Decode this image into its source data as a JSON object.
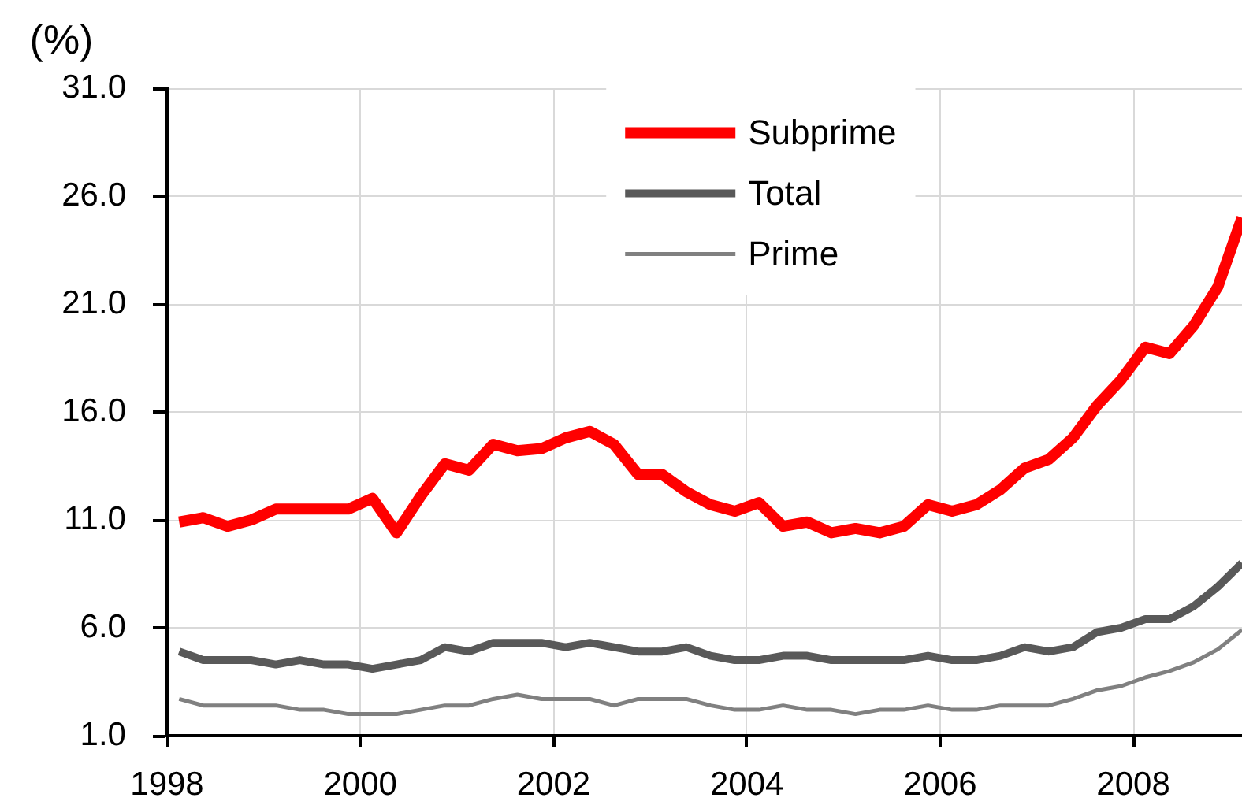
{
  "chart_data": {
    "type": "line",
    "ylabel": "(%)",
    "x": [
      1998.125,
      1998.375,
      1998.625,
      1998.875,
      1999.125,
      1999.375,
      1999.625,
      1999.875,
      2000.125,
      2000.375,
      2000.625,
      2000.875,
      2001.125,
      2001.375,
      2001.625,
      2001.875,
      2002.125,
      2002.375,
      2002.625,
      2002.875,
      2003.125,
      2003.375,
      2003.625,
      2003.875,
      2004.125,
      2004.375,
      2004.625,
      2004.875,
      2005.125,
      2005.375,
      2005.625,
      2005.875,
      2006.125,
      2006.375,
      2006.625,
      2006.875,
      2007.125,
      2007.375,
      2007.625,
      2007.875,
      2008.125,
      2008.375,
      2008.625,
      2008.875,
      2009.125
    ],
    "series": [
      {
        "name": "Subprime",
        "color": "#ff0000",
        "values": [
          10.9,
          11.1,
          10.7,
          11.0,
          11.5,
          11.5,
          11.5,
          11.5,
          12.0,
          10.4,
          12.1,
          13.6,
          13.3,
          14.5,
          14.2,
          14.3,
          14.8,
          15.1,
          14.5,
          13.1,
          13.1,
          12.3,
          11.7,
          11.4,
          11.8,
          10.7,
          10.9,
          10.4,
          10.6,
          10.4,
          10.7,
          11.7,
          11.4,
          11.7,
          12.4,
          13.4,
          13.8,
          14.8,
          16.3,
          17.5,
          19.0,
          18.7,
          20.0,
          21.8,
          25.0
        ]
      },
      {
        "name": "Total",
        "color": "#595959",
        "values": [
          4.9,
          4.5,
          4.5,
          4.5,
          4.3,
          4.5,
          4.3,
          4.3,
          4.1,
          4.3,
          4.5,
          5.1,
          4.9,
          5.3,
          5.3,
          5.3,
          5.1,
          5.3,
          5.1,
          4.9,
          4.9,
          5.1,
          4.7,
          4.5,
          4.5,
          4.7,
          4.7,
          4.5,
          4.5,
          4.5,
          4.5,
          4.7,
          4.5,
          4.5,
          4.7,
          5.1,
          4.9,
          5.1,
          5.8,
          6.0,
          6.4,
          6.4,
          7.0,
          7.9,
          9.0
        ]
      },
      {
        "name": "Prime",
        "color": "#808080",
        "values": [
          2.7,
          2.4,
          2.4,
          2.4,
          2.4,
          2.2,
          2.2,
          2.0,
          2.0,
          2.0,
          2.2,
          2.4,
          2.4,
          2.7,
          2.9,
          2.7,
          2.7,
          2.7,
          2.4,
          2.7,
          2.7,
          2.7,
          2.4,
          2.2,
          2.2,
          2.4,
          2.2,
          2.2,
          2.0,
          2.2,
          2.2,
          2.4,
          2.2,
          2.2,
          2.4,
          2.4,
          2.4,
          2.7,
          3.1,
          3.3,
          3.7,
          4.0,
          4.4,
          5.0,
          5.9
        ]
      }
    ],
    "xlim": [
      1998,
      2009.125
    ],
    "xticks": [
      1998,
      2000,
      2002,
      2004,
      2006,
      2008
    ],
    "ylim": [
      1,
      31
    ],
    "yticks": [
      {
        "value": 1,
        "label": "1.0"
      },
      {
        "value": 6,
        "label": "6.0"
      },
      {
        "value": 11,
        "label": "11.0"
      },
      {
        "value": 16,
        "label": "16.0"
      },
      {
        "value": 21,
        "label": "21.0"
      },
      {
        "value": 26,
        "label": "26.0"
      },
      {
        "value": 31,
        "label": "31.0"
      }
    ],
    "grid": true,
    "legend": "top",
    "marker": "none",
    "line_style": "solid"
  }
}
